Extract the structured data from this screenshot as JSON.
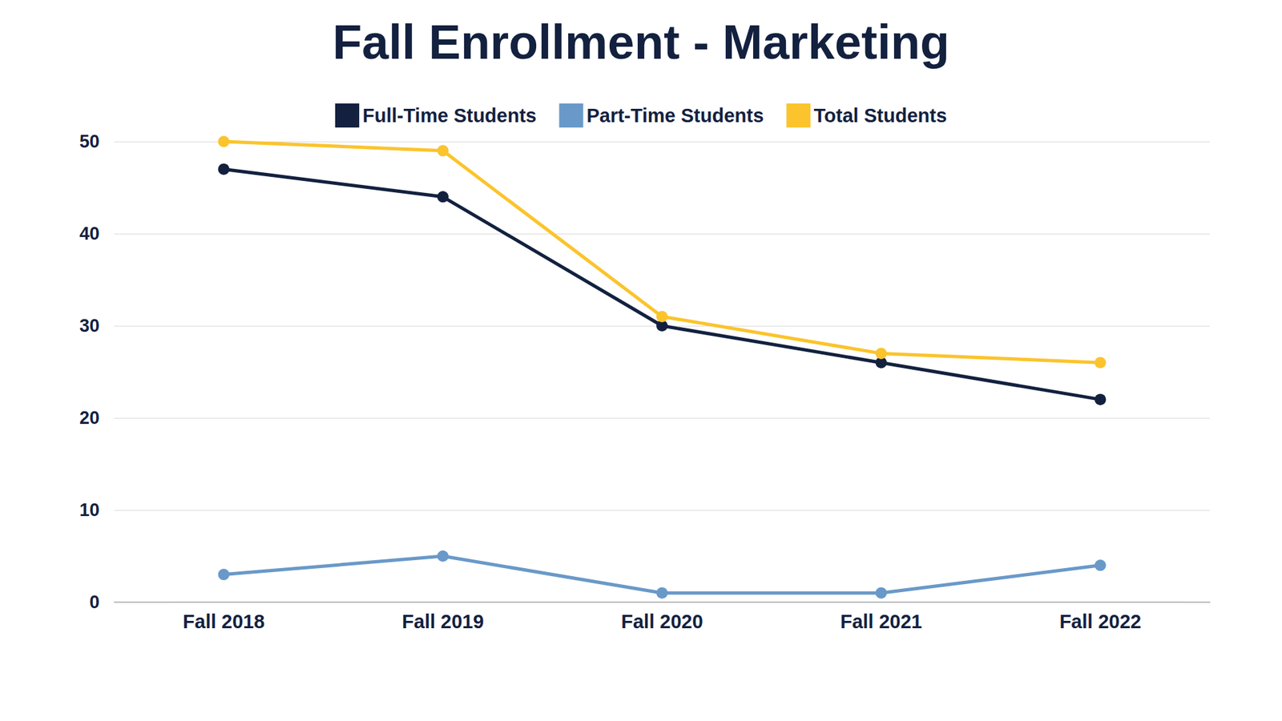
{
  "chart_data": {
    "type": "line",
    "title": "Fall Enrollment - Marketing",
    "categories": [
      "Fall 2018",
      "Fall 2019",
      "Fall 2020",
      "Fall 2021",
      "Fall 2022"
    ],
    "series": [
      {
        "name": "Full-Time Students",
        "color": "#13213f",
        "values": [
          47,
          44,
          30,
          26,
          22
        ]
      },
      {
        "name": "Part-Time Students",
        "color": "#6999c8",
        "values": [
          3,
          5,
          1,
          1,
          4
        ]
      },
      {
        "name": "Total Students",
        "color": "#fbc42c",
        "values": [
          50,
          49,
          31,
          27,
          26
        ]
      }
    ],
    "ylim": [
      0,
      50
    ],
    "yticks": [
      0,
      10,
      20,
      30,
      40,
      50
    ],
    "grid": true,
    "legend": "top",
    "marker": "circle"
  }
}
